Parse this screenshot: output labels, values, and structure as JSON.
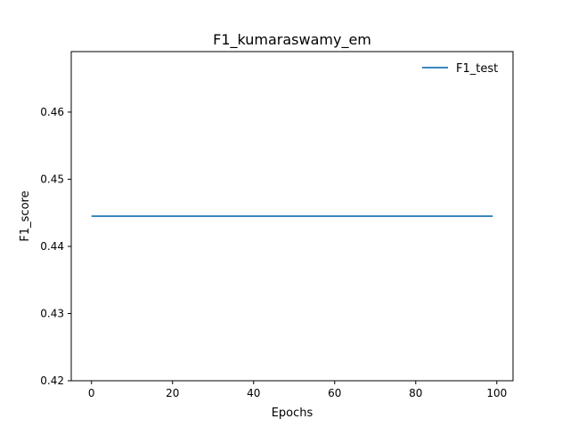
{
  "chart_data": {
    "type": "line",
    "title": "F1_kumaraswamy_em",
    "xlabel": "Epochs",
    "ylabel": "F1_score",
    "xlim": [
      -5,
      104
    ],
    "ylim": [
      0.42,
      0.469
    ],
    "x_ticks": [
      0,
      20,
      40,
      60,
      80,
      100
    ],
    "y_ticks": [
      0.42,
      0.43,
      0.44,
      0.45,
      0.46
    ],
    "x_tick_labels": [
      "0",
      "20",
      "40",
      "60",
      "80",
      "100"
    ],
    "y_tick_labels": [
      "0.42",
      "0.43",
      "0.44",
      "0.45",
      "0.46"
    ],
    "grid": false,
    "legend_position": "top-right",
    "series": [
      {
        "name": "F1_test",
        "color": "#1f77b4",
        "x": [
          0,
          99
        ],
        "y": [
          0.4445,
          0.4445
        ]
      }
    ]
  }
}
